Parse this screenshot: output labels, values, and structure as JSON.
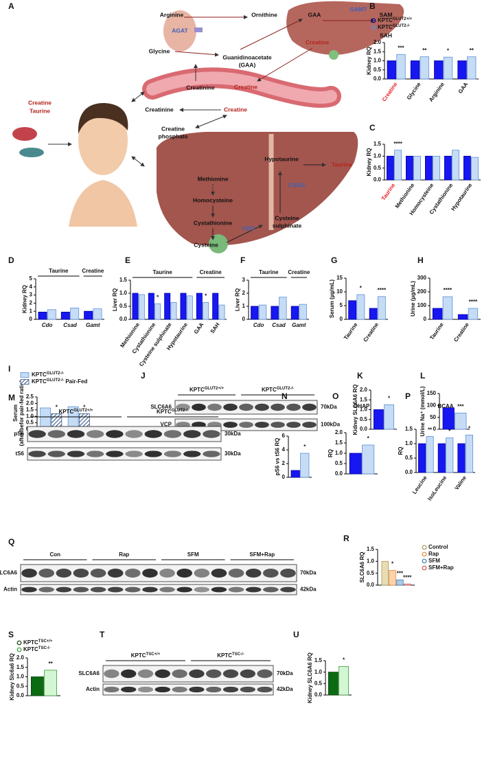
{
  "panel_labels": [
    "A",
    "B",
    "C",
    "D",
    "E",
    "F",
    "G",
    "H",
    "I",
    "J",
    "K",
    "L",
    "M",
    "N",
    "O",
    "P",
    "Q",
    "R",
    "S",
    "T",
    "U"
  ],
  "diagram": {
    "intake": [
      "Creatine",
      "Taurine"
    ],
    "arginine": "Arginine",
    "ornithine": "Ornithine",
    "agat": "AGAT",
    "glycine": "Glycine",
    "gaa_full": [
      "Guanidinoacetate",
      "(GAA)"
    ],
    "gaa": "GAA",
    "gamt": "GAMT",
    "sam": "SAM",
    "sah": "SAH",
    "creatine_liver": "Creatine",
    "vessel_creatinine": "Creatinine",
    "vessel_creatine": "Creatine",
    "creatinine_2": "Creatinine",
    "creatine_2": "Creatine",
    "creatine_phosphate": [
      "Creatine",
      "phosphate"
    ],
    "methionine": "Methionine",
    "homocysteine": "Homocysteine",
    "cystathionine": "Cystathionine",
    "cysteine": "Cysteine",
    "cdo": "CDO",
    "cysteine_sulphinate": [
      "Cysteine",
      "sulphinate"
    ],
    "csad": "CSAD",
    "hypotaurine": "Hypotaurine",
    "taurine": "Taurine"
  },
  "blots": [
    {
      "groups": [
        {
          "name": "KPTC",
          "sup": "GLUT2+/+"
        },
        {
          "name": "KPTC",
          "sup": "GLUT2-/-"
        }
      ],
      "rows": [
        {
          "name": "SLC6A6",
          "size": "70kDa"
        },
        {
          "name": "VCP",
          "size": "100kDa"
        }
      ]
    },
    {
      "groups": [
        {
          "name": "KPTC",
          "sup": "GLUT2+/+"
        },
        {
          "name": "KPTC",
          "sup": "GLUT2-/-"
        }
      ],
      "rows": [
        {
          "name": "pS6",
          "size": "30kDa"
        },
        {
          "name": "tS6",
          "size": "30kDa"
        }
      ]
    },
    {
      "groups": [
        {
          "name": "Con"
        },
        {
          "name": "Rap"
        },
        {
          "name": "SFM"
        },
        {
          "name": "SFM+Rap"
        }
      ],
      "rows": [
        {
          "name": "SLC6A6",
          "size": "70kDa"
        },
        {
          "name": "Actin",
          "size": "42kDa"
        }
      ]
    },
    {
      "groups": [
        {
          "name": "KPTC",
          "sup": "TSC+/+"
        },
        {
          "name": "KPTC",
          "sup": "TSC-/-"
        }
      ],
      "rows": [
        {
          "name": "SLC6A6",
          "size": "70kDa"
        },
        {
          "name": "Actin",
          "size": "42kDa"
        }
      ]
    }
  ],
  "chart_data": [
    {
      "type": "bar",
      "y_label": "Kidney RQ",
      "categories": [
        "Creatine",
        "Glycine",
        "Arginine",
        "GAA"
      ],
      "highlight_category": 0,
      "highlight_color": "#e8202a",
      "rotate_labels": true,
      "series": [
        {
          "name": "KPTC",
          "name_sup": "GLUT2+/+",
          "color": "#1717f2",
          "edge": "#0000a0",
          "values": [
            1.0,
            1.0,
            1.0,
            1.0
          ]
        },
        {
          "name": "KPTC",
          "name_sup": "GLUT2-/-",
          "color": "#c6dcf5",
          "edge": "#5a8fd8",
          "values": [
            1.35,
            1.22,
            1.2,
            1.22
          ],
          "significance": [
            "***",
            "**",
            "*",
            "**"
          ]
        }
      ],
      "ylim": [
        0,
        2
      ],
      "yticks": [
        {
          "value": 0,
          "label": "0.0"
        },
        0.5,
        {
          "value": 1,
          "label": "1.0"
        },
        1.5,
        {
          "value": 2,
          "label": "2.0"
        }
      ],
      "legend": "top",
      "legend_marker": "circle"
    },
    {
      "type": "bar",
      "y_label": "Kidney RQ",
      "categories": [
        "Taurine",
        "Methionine",
        "Homocysteine",
        "Cystathionine",
        "Hypotaurine"
      ],
      "highlight_category": 0,
      "highlight_color": "#e8202a",
      "rotate_labels": true,
      "series": [
        {
          "color": "#1717f2",
          "edge": "#0000a0",
          "values": [
            1.0,
            1.0,
            1.0,
            1.0,
            1.0
          ]
        },
        {
          "color": "#c6dcf5",
          "edge": "#5a8fd8",
          "values": [
            1.25,
            1.0,
            1.0,
            1.25,
            0.95
          ],
          "significance": [
            "****",
            null,
            null,
            null,
            null
          ]
        }
      ],
      "ylim": [
        0,
        1.5
      ],
      "yticks": [
        {
          "value": 0,
          "label": "0.0"
        },
        0.5,
        {
          "value": 1,
          "label": "1.0"
        },
        1.5
      ]
    },
    {
      "type": "bar",
      "y_label": "Kidney RQ",
      "categories": [
        "Cdo",
        "Csad",
        "Gamt"
      ],
      "italic_categories": true,
      "rotate_labels": false,
      "groups": [
        {
          "name": "Taurine",
          "span": [
            0,
            1
          ]
        },
        {
          "name": "Creatine",
          "span": [
            2,
            2
          ]
        }
      ],
      "series": [
        {
          "color": "#1717f2",
          "edge": "#0000a0",
          "values": [
            0.9,
            0.9,
            1.0
          ]
        },
        {
          "color": "#c6dcf5",
          "edge": "#5a8fd8",
          "values": [
            1.2,
            1.4,
            1.3
          ]
        }
      ],
      "ylim": [
        0,
        5
      ],
      "yticks": [
        0,
        1,
        2,
        3,
        4,
        5
      ]
    },
    {
      "type": "bar",
      "y_label": "Liver RQ",
      "categories": [
        "Methionine",
        "Cystathionine",
        "Cysteine sulphinate",
        "Hypotaurine",
        "GAA",
        "SAH"
      ],
      "rotate_labels": true,
      "groups": [
        {
          "name": "Taurine",
          "span": [
            0,
            3
          ]
        },
        {
          "name": "Creatine",
          "span": [
            4,
            5
          ]
        }
      ],
      "series": [
        {
          "color": "#1717f2",
          "edge": "#0000a0",
          "values": [
            1.0,
            1.0,
            1.0,
            1.0,
            1.0,
            1.0
          ]
        },
        {
          "color": "#c6dcf5",
          "edge": "#5a8fd8",
          "values": [
            0.95,
            0.6,
            0.65,
            0.9,
            0.65,
            0.55
          ],
          "significance": [
            null,
            "*",
            null,
            null,
            "*",
            null
          ]
        }
      ],
      "ylim": [
        0,
        1.5
      ],
      "yticks": [
        {
          "value": 0,
          "label": "0.0"
        },
        0.5,
        {
          "value": 1,
          "label": "1.0"
        },
        1.5
      ]
    },
    {
      "type": "bar",
      "y_label": "Liver RQ",
      "categories": [
        "Cdo",
        "Csad",
        "Gamt"
      ],
      "italic_categories": true,
      "rotate_labels": false,
      "groups": [
        {
          "name": "Taurine",
          "span": [
            0,
            1
          ]
        },
        {
          "name": "Creatine",
          "span": [
            2,
            2
          ]
        }
      ],
      "series": [
        {
          "color": "#1717f2",
          "edge": "#0000a0",
          "values": [
            1.0,
            1.0,
            1.0
          ]
        },
        {
          "color": "#c6dcf5",
          "edge": "#5a8fd8",
          "values": [
            1.1,
            1.7,
            1.15
          ]
        }
      ],
      "ylim": [
        0,
        3
      ],
      "yticks": [
        0,
        1,
        2,
        3
      ]
    },
    {
      "type": "bar",
      "y_label": "Serum (µg/mL)",
      "categories": [
        "Taurine",
        "Creatine"
      ],
      "rotate_labels": true,
      "series": [
        {
          "color": "#1717f2",
          "edge": "#0000a0",
          "values": [
            6.8,
            4.0
          ]
        },
        {
          "color": "#c6dcf5",
          "edge": "#5a8fd8",
          "values": [
            9.0,
            8.3
          ],
          "significance": [
            "*",
            "****"
          ]
        }
      ],
      "ylim": [
        0,
        15
      ],
      "yticks": [
        0,
        5,
        10,
        15
      ]
    },
    {
      "type": "bar",
      "y_label": "Urine (µg/mL)",
      "categories": [
        "Taurine",
        "Creatine"
      ],
      "rotate_labels": true,
      "series": [
        {
          "color": "#1717f2",
          "edge": "#0000a0",
          "values": [
            80,
            35
          ]
        },
        {
          "color": "#c6dcf5",
          "edge": "#5a8fd8",
          "values": [
            165,
            80
          ],
          "significance": [
            "****",
            "****"
          ]
        }
      ],
      "ylim": [
        0,
        300
      ],
      "yticks": [
        0,
        100,
        200,
        300
      ]
    },
    {
      "type": "bar",
      "y_label": [
        "Serum",
        "(after/befor pair-fed ratio)"
      ],
      "categories": [
        "Taurine",
        "Creatine"
      ],
      "rotate_labels": false,
      "series": [
        {
          "name": "KPTC",
          "name_sup": "GLUT2-/-",
          "color": "#c6dcf5",
          "edge": "#5a8fd8",
          "values": [
            1.65,
            1.75
          ]
        },
        {
          "name": "KPTC",
          "name_sup": "GLUT2-/-",
          "name_suffix": " Pair-Fed",
          "color": "#3b5a8a",
          "edge": "#3b5a8a",
          "pattern": "hatch",
          "values": [
            1.2,
            1.2
          ],
          "significance": [
            "*",
            "*"
          ]
        }
      ],
      "ylim": [
        0,
        2.5
      ],
      "yticks": [
        {
          "value": 0,
          "label": "0.0"
        },
        0.5,
        {
          "value": 1,
          "label": "1.0"
        },
        1.5,
        {
          "value": 2,
          "label": "2.0"
        },
        2.5
      ],
      "legend": "top-left",
      "legend_marker": "square"
    },
    {
      "type": "bar",
      "y_label": "Kidney SLC6A6 RQ",
      "categories": [
        null
      ],
      "series": [
        {
          "color": "#1717f2",
          "edge": "#0000a0",
          "values": [
            1.0
          ]
        },
        {
          "color": "#c6dcf5",
          "edge": "#5a8fd8",
          "values": [
            1.25
          ],
          "significance": [
            "*"
          ]
        }
      ],
      "ylim": [
        0,
        2
      ],
      "yticks": [
        {
          "value": 0,
          "label": "0.0"
        },
        0.5,
        {
          "value": 1,
          "label": "1.0"
        },
        1.5,
        {
          "value": 2,
          "label": "2.0"
        }
      ]
    },
    {
      "type": "bar",
      "y_label": "Urine Na⁺ (mmol/L)",
      "categories": [
        null
      ],
      "series": [
        {
          "color": "#1717f2",
          "edge": "#0000a0",
          "values": [
            90
          ]
        },
        {
          "color": "#c6dcf5",
          "edge": "#5a8fd8",
          "values": [
            68
          ],
          "significance": [
            "***"
          ]
        }
      ],
      "ylim": [
        0,
        150
      ],
      "yticks": [
        0,
        50,
        100,
        150
      ]
    },
    {
      "type": "bar",
      "y_label": "pS6 vs tS6 RQ",
      "categories": [
        null
      ],
      "series": [
        {
          "color": "#1717f2",
          "edge": "#0000a0",
          "values": [
            1.0
          ]
        },
        {
          "color": "#c6dcf5",
          "edge": "#5a8fd8",
          "values": [
            3.5
          ],
          "significance": [
            "*"
          ]
        }
      ],
      "ylim": [
        0,
        6
      ],
      "yticks": [
        0,
        2,
        4,
        6
      ]
    },
    {
      "type": "bar",
      "title": "DHAP",
      "y_label": "RQ",
      "categories": [
        null
      ],
      "series": [
        {
          "color": "#1717f2",
          "edge": "#0000a0",
          "values": [
            1.0
          ]
        },
        {
          "color": "#c6dcf5",
          "edge": "#5a8fd8",
          "values": [
            1.4
          ],
          "significance": [
            "*"
          ]
        }
      ],
      "ylim": [
        0,
        2
      ],
      "yticks": [
        {
          "value": 0,
          "label": "0.0"
        },
        0.5,
        {
          "value": 1,
          "label": "1.0"
        },
        1.5,
        {
          "value": 2,
          "label": "2.0"
        }
      ]
    },
    {
      "type": "bar",
      "title": "BCAA",
      "y_label": "RQ",
      "categories": [
        "Leucine",
        "IsoLeucine",
        "Valine"
      ],
      "rotate_labels": true,
      "series": [
        {
          "color": "#1717f2",
          "edge": "#0000a0",
          "values": [
            1.0,
            1.0,
            1.0
          ]
        },
        {
          "color": "#c6dcf5",
          "edge": "#5a8fd8",
          "values": [
            1.25,
            1.2,
            1.3
          ],
          "significance": [
            "**",
            "*",
            "*"
          ]
        }
      ],
      "ylim": [
        0,
        1.5
      ],
      "yticks": [
        {
          "value": 0,
          "label": "0.0"
        },
        0.5,
        {
          "value": 1,
          "label": "1.0"
        },
        1.5
      ]
    },
    {
      "type": "bar",
      "y_label": "SLC6A6 RQ",
      "categories": [
        null
      ],
      "series": [
        {
          "name": "Control",
          "color": "#eadcb2",
          "edge": "#a8955a",
          "values": [
            1.0
          ]
        },
        {
          "name": "Rap",
          "color": "#fbd3ab",
          "edge": "#e08a3a",
          "values": [
            0.62
          ],
          "significance": [
            "*"
          ]
        },
        {
          "name": "SFM",
          "color": "#a9cbe6",
          "edge": "#3a7ab0",
          "values": [
            0.22
          ],
          "significance": [
            "***"
          ]
        },
        {
          "name": "SFM+Rap",
          "color": "#f6c9c9",
          "edge": "#d0505a",
          "values": [
            0.05
          ],
          "significance": [
            "****"
          ]
        }
      ],
      "ylim": [
        0,
        1.5
      ],
      "yticks": [
        {
          "value": 0,
          "label": "0.0"
        },
        0.5,
        {
          "value": 1,
          "label": "1.0"
        },
        1.5
      ],
      "legend": "right",
      "legend_marker": "circle"
    },
    {
      "type": "bar",
      "y_label": "Kidney Slc6a6 RQ",
      "categories": [
        null
      ],
      "series": [
        {
          "name": "KPTC",
          "name_sup": "TSC+/+",
          "color": "#0b6b12",
          "edge": "#064008",
          "values": [
            1.0
          ]
        },
        {
          "name": "KPTC",
          "name_sup": "TSC-/-",
          "color": "#d3f6d3",
          "edge": "#3a9a3a",
          "values": [
            1.35
          ],
          "significance": [
            "**"
          ]
        }
      ],
      "ylim": [
        0,
        2
      ],
      "yticks": [
        {
          "value": 0,
          "label": "0.0"
        },
        0.5,
        {
          "value": 1,
          "label": "1.0"
        },
        1.5,
        {
          "value": 2,
          "label": "2.0"
        }
      ],
      "legend": "top",
      "legend_marker": "circle"
    },
    {
      "type": "bar",
      "y_label": "Kidney SLC6A6 RQ",
      "categories": [
        null
      ],
      "series": [
        {
          "color": "#0b6b12",
          "edge": "#064008",
          "values": [
            1.0
          ]
        },
        {
          "color": "#d3f6d3",
          "edge": "#3a9a3a",
          "values": [
            1.25
          ],
          "significance": [
            "*"
          ]
        }
      ],
      "ylim": [
        0,
        1.5
      ],
      "yticks": [
        {
          "value": 0,
          "label": "0.0"
        },
        0.5,
        {
          "value": 1,
          "label": "1.0"
        },
        1.5
      ]
    }
  ]
}
